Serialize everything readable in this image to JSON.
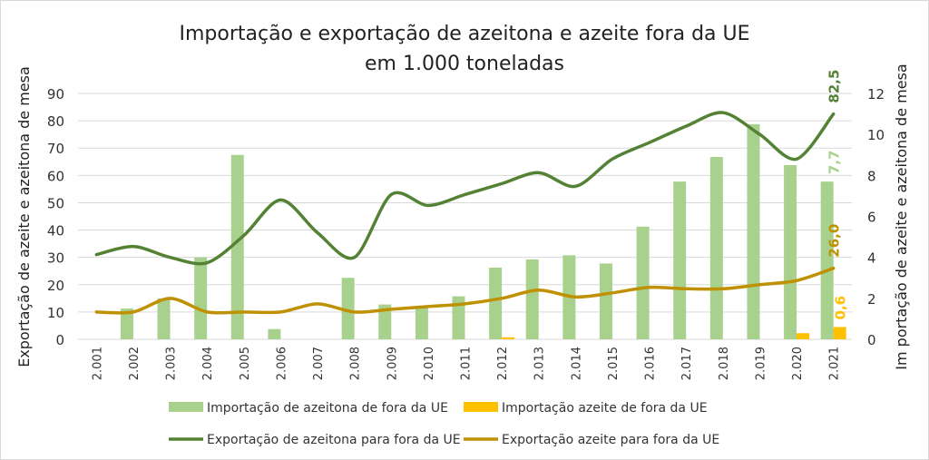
{
  "chart_data": {
    "type": "bar+line",
    "title": [
      "Importação e exportação de azeitona e azeite fora da UE",
      "em 1.000 toneladas"
    ],
    "ylabel_left": "Exportação de azeite e azeitona de mesa",
    "ylabel_right": "Im portação de azeite e azeitona de mesa",
    "ylim_left": [
      0,
      90
    ],
    "yticks_left": [
      0,
      10,
      20,
      30,
      40,
      50,
      60,
      70,
      80,
      90
    ],
    "ylim_right": [
      0,
      12
    ],
    "yticks_right": [
      0,
      2,
      4,
      6,
      8,
      10,
      12
    ],
    "grid": true,
    "legend_position": "bottom",
    "categories": [
      "2.001",
      "2.002",
      "2.003",
      "2.004",
      "2.005",
      "2.006",
      "2.007",
      "2.008",
      "2.009",
      "2.010",
      "2.011",
      "2.012",
      "2.013",
      "2.014",
      "2.015",
      "2.016",
      "2.017",
      "2.018",
      "2.019",
      "2.020",
      "2.021"
    ],
    "series": [
      {
        "name": "Importação de azeitona de fora da UE",
        "kind": "bar",
        "axis": "right",
        "color": "#A9D18E",
        "values": [
          0,
          1.5,
          2.0,
          4.0,
          9.0,
          0.5,
          0,
          3.0,
          1.7,
          1.6,
          2.1,
          3.5,
          3.9,
          4.1,
          3.7,
          5.5,
          7.7,
          8.9,
          10.5,
          8.5,
          7.7
        ],
        "last_label": "7,7"
      },
      {
        "name": "Importação azeite de fora da UE",
        "kind": "bar",
        "axis": "right",
        "color": "#FFC000",
        "values": [
          0,
          0,
          0,
          0,
          0,
          0,
          0,
          0,
          0,
          0,
          0,
          0.1,
          0,
          0,
          0,
          0,
          0,
          0,
          0,
          0.3,
          0.6
        ],
        "last_label": "0,6"
      },
      {
        "name": "Exportação de azeitona para fora da UE",
        "kind": "line",
        "axis": "left",
        "color": "#548235",
        "values": [
          31,
          34,
          30,
          28,
          38,
          51,
          39,
          30,
          53,
          49,
          53,
          57,
          61,
          56,
          66,
          72,
          78,
          83,
          75,
          66,
          82.5
        ],
        "last_label": "82,5"
      },
      {
        "name": "Exportação azeite para fora da UE",
        "kind": "line",
        "axis": "left",
        "color": "#BF9000",
        "values": [
          10,
          10,
          15,
          10,
          10,
          10,
          13,
          10,
          11,
          12,
          13,
          15,
          18,
          15.5,
          17,
          19,
          18.5,
          18.5,
          20,
          21.5,
          26.0
        ],
        "last_label": "26,0"
      }
    ]
  }
}
